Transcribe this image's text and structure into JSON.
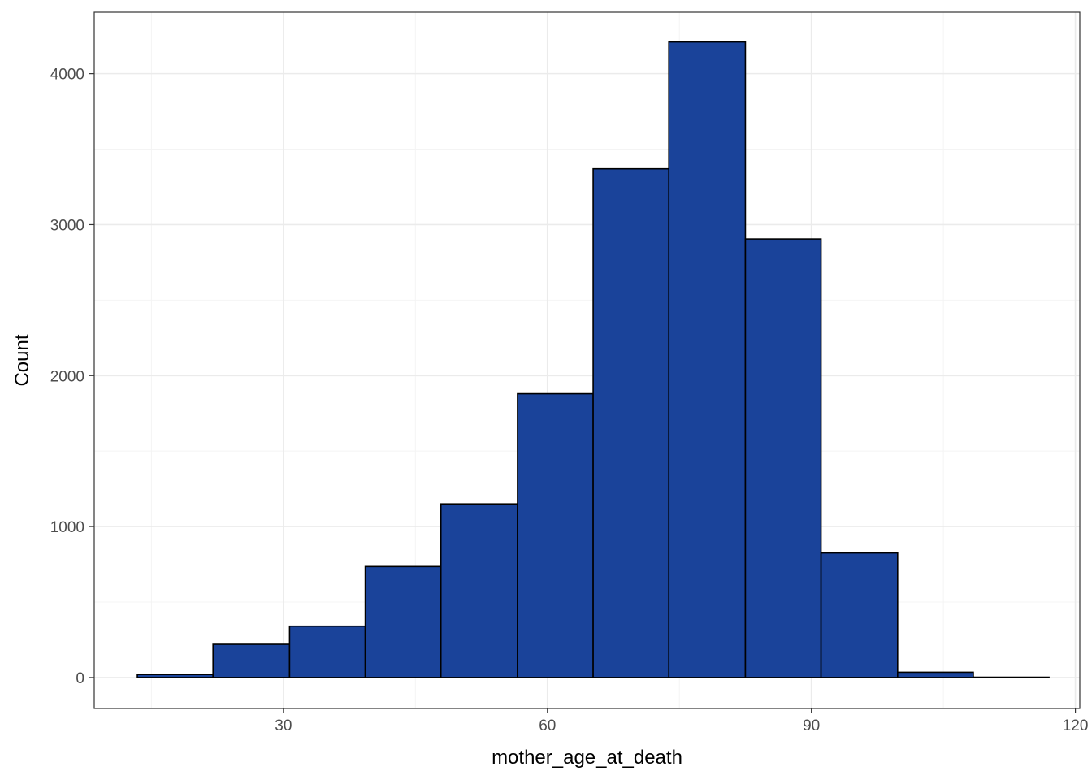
{
  "chart_data": {
    "type": "bar",
    "subtype": "histogram",
    "title": "",
    "xlabel": "mother_age_at_death",
    "ylabel": "Count",
    "xlim": [
      8.5,
      120.5
    ],
    "ylim": [
      -205,
      4407
    ],
    "xticks": [
      30,
      60,
      90,
      120
    ],
    "yticks": [
      0,
      1000,
      2000,
      3000,
      4000
    ],
    "x_minor_grid": [
      15,
      45,
      75,
      105
    ],
    "y_minor_grid": [
      500,
      1500,
      2500,
      3500
    ],
    "grid": true,
    "legend": "none",
    "bins": [
      {
        "x0": 13.4,
        "x1": 22.0,
        "count": 20
      },
      {
        "x0": 22.0,
        "x1": 30.7,
        "count": 220
      },
      {
        "x0": 30.7,
        "x1": 39.3,
        "count": 340
      },
      {
        "x0": 39.3,
        "x1": 47.9,
        "count": 735
      },
      {
        "x0": 47.9,
        "x1": 56.6,
        "count": 1150
      },
      {
        "x0": 56.6,
        "x1": 65.2,
        "count": 1880
      },
      {
        "x0": 65.2,
        "x1": 73.8,
        "count": 3370
      },
      {
        "x0": 73.8,
        "x1": 82.5,
        "count": 4210
      },
      {
        "x0": 82.5,
        "x1": 91.1,
        "count": 2905
      },
      {
        "x0": 91.1,
        "x1": 99.8,
        "count": 825
      },
      {
        "x0": 99.8,
        "x1": 108.4,
        "count": 35
      },
      {
        "x0": 108.4,
        "x1": 117.0,
        "count": 2
      }
    ],
    "colors": {
      "bar_fill": "#1a439a",
      "bar_stroke": "#000000",
      "grid_major": "#ebebeb",
      "grid_minor": "#f4f4f4",
      "panel_border": "#333333"
    }
  }
}
